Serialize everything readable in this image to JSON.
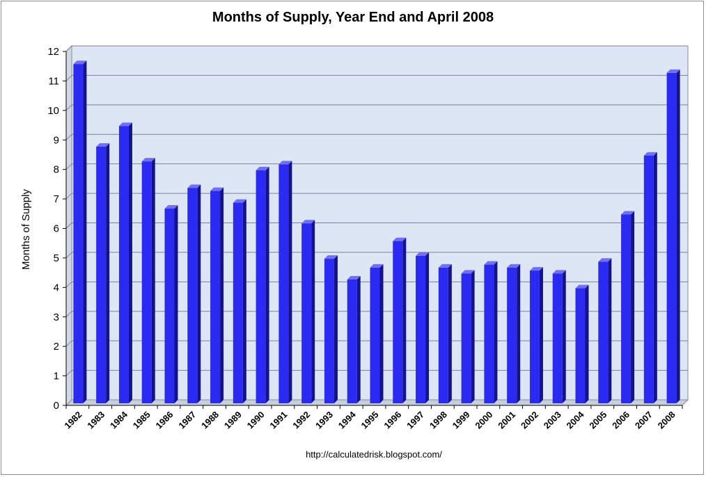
{
  "chart_data": {
    "type": "bar",
    "title": "Months of Supply, Year End and April 2008",
    "ylabel": "Months of Supply",
    "xlabel": "",
    "ylim": [
      0,
      12
    ],
    "yticks": [
      "0",
      "1",
      "2",
      "3",
      "4",
      "5",
      "6",
      "7",
      "8",
      "9",
      "10",
      "11",
      "12"
    ],
    "grid": true,
    "legend": "none",
    "categories": [
      "1982",
      "1983",
      "1984",
      "1985",
      "1986",
      "1987",
      "1988",
      "1989",
      "1990",
      "1991",
      "1992",
      "1993",
      "1994",
      "1995",
      "1996",
      "1997",
      "1998",
      "1999",
      "2000",
      "2001",
      "2002",
      "2003",
      "2004",
      "2005",
      "2006",
      "2007",
      "2008"
    ],
    "series": [
      {
        "values": [
          11.5,
          8.7,
          9.4,
          8.2,
          6.6,
          7.3,
          7.2,
          6.8,
          7.9,
          8.1,
          6.1,
          4.9,
          4.2,
          4.6,
          5.5,
          5.0,
          4.6,
          4.4,
          4.7,
          4.6,
          4.5,
          4.4,
          3.9,
          4.8,
          6.4,
          8.4,
          11.2
        ],
        "color": "#2a2af2"
      }
    ],
    "footer": "http://calculatedrisk.blogspot.com/"
  }
}
